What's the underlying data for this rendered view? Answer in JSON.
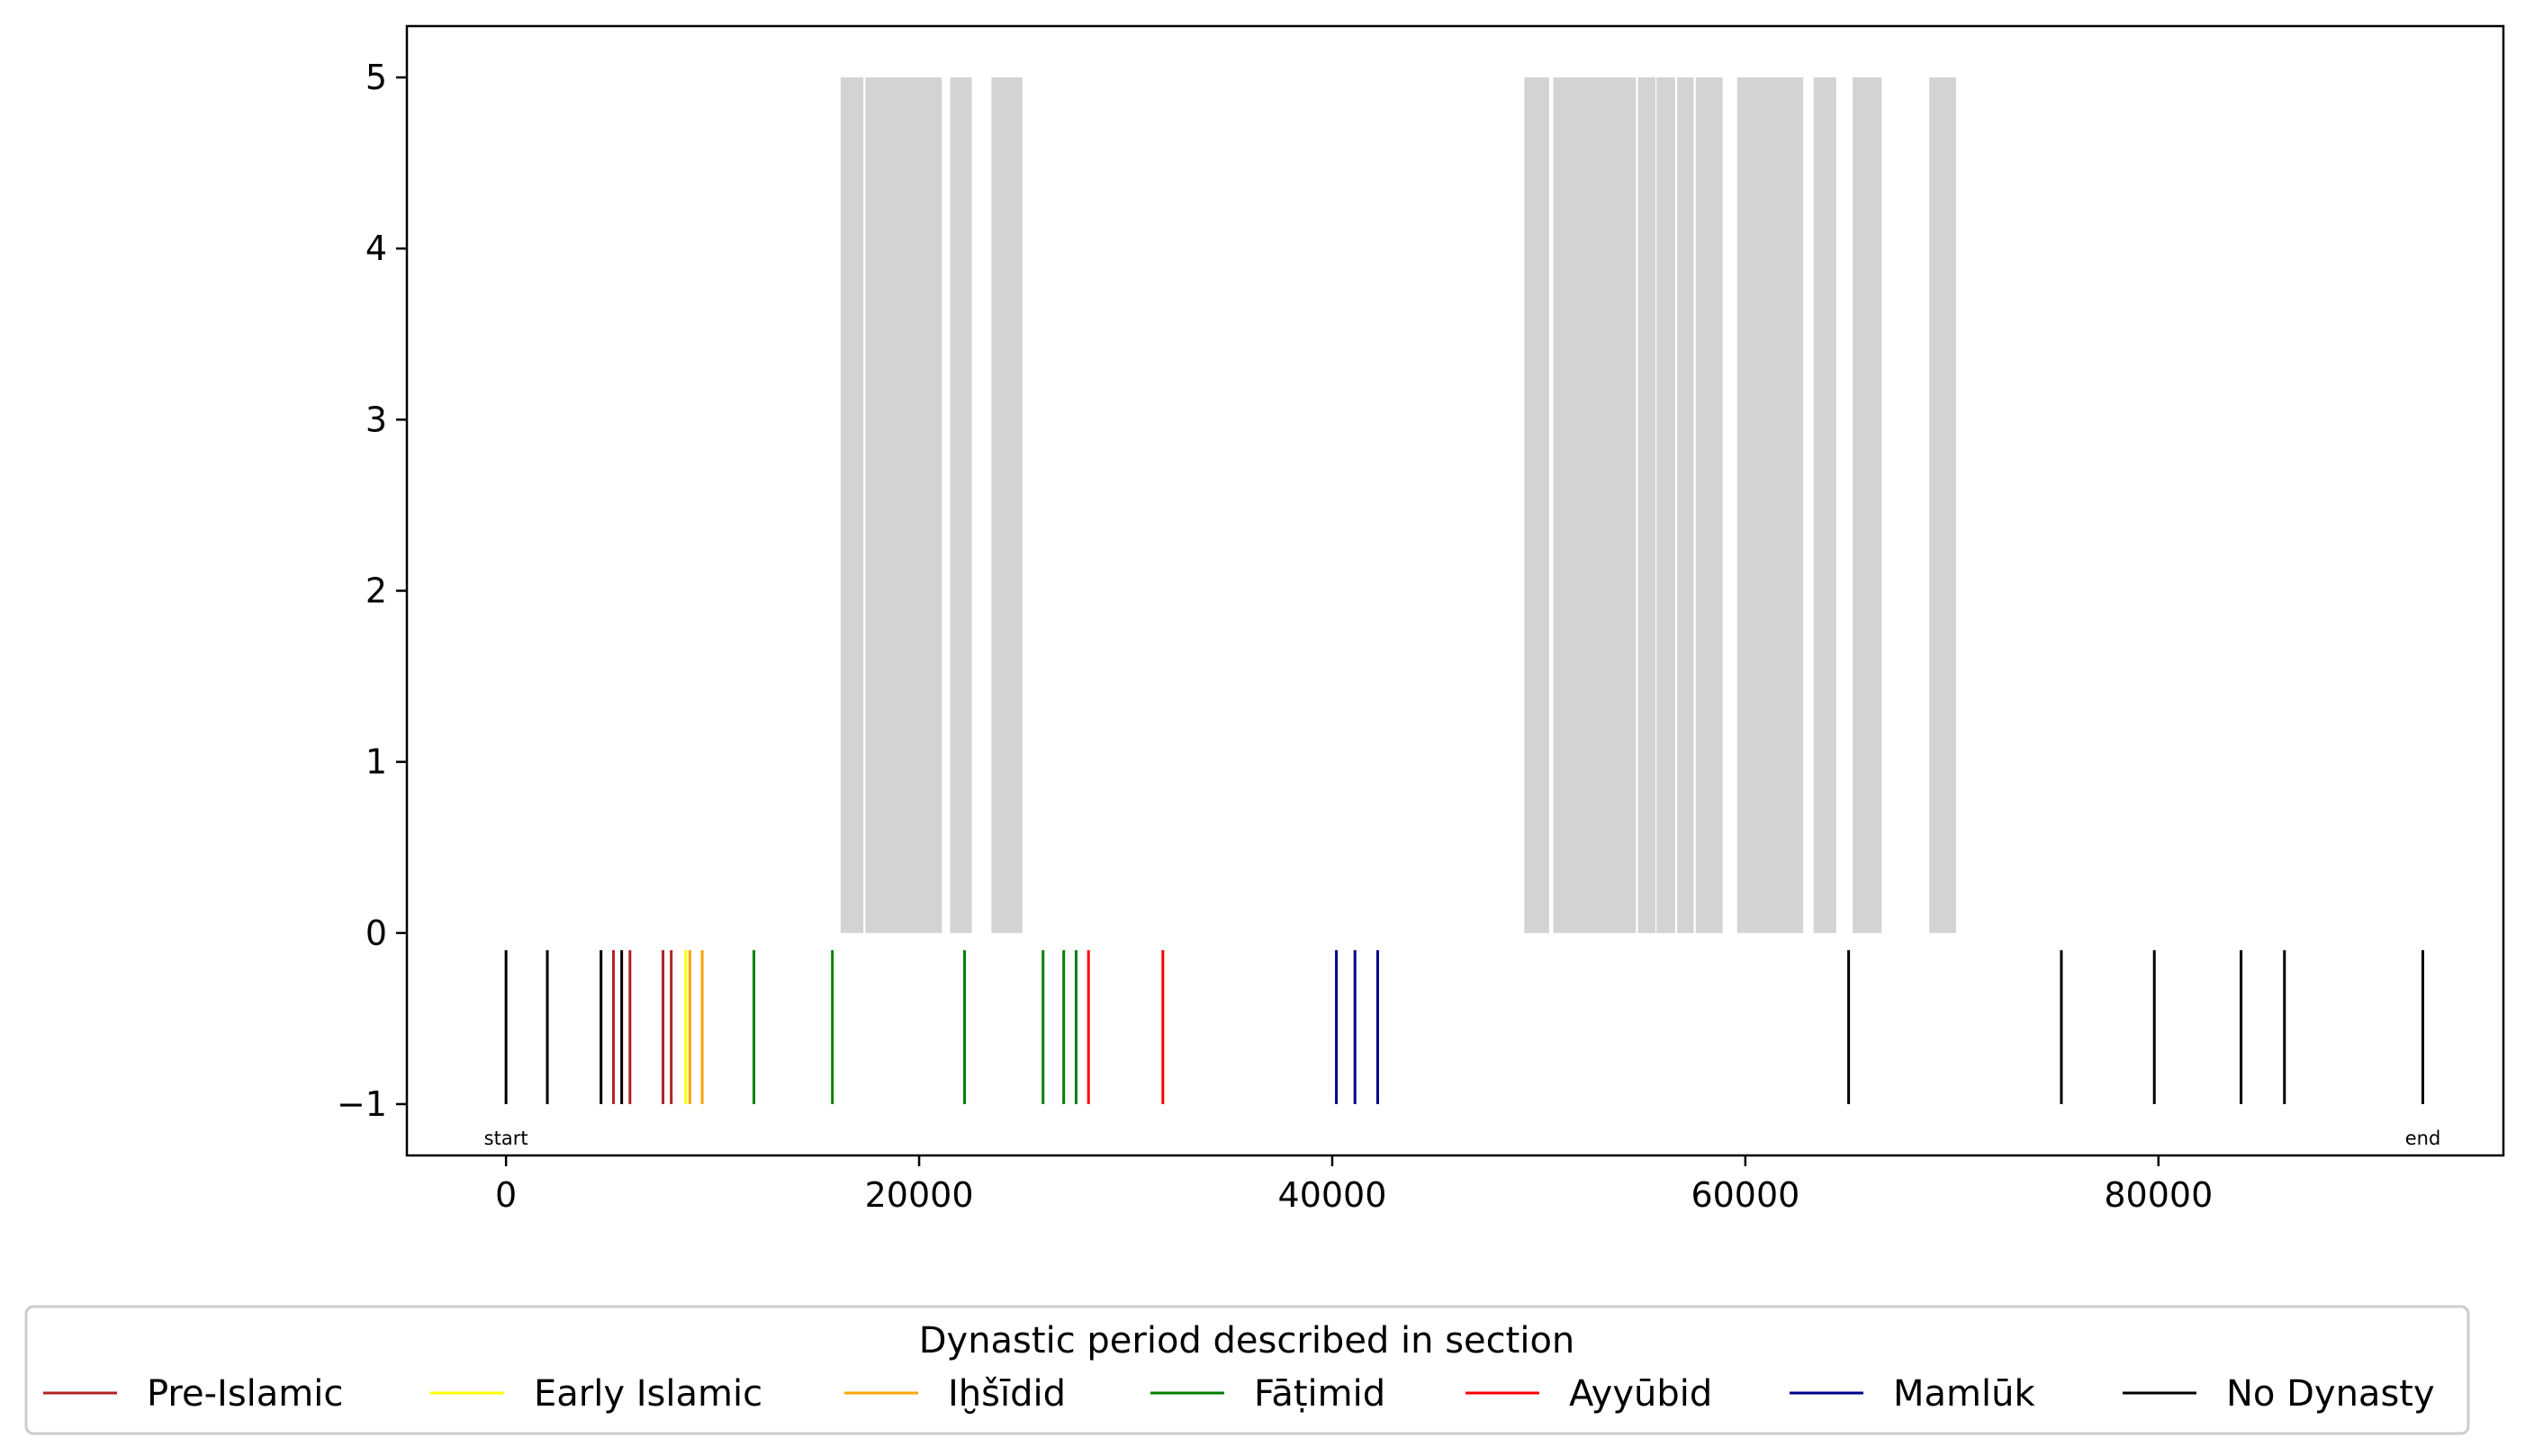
{
  "chart_data": {
    "type": "timeline",
    "xlim": [
      -4800,
      96700
    ],
    "ylim": [
      -1.3,
      5.3
    ],
    "xticks": [
      0,
      20000,
      40000,
      60000,
      80000
    ],
    "yticks": [
      5,
      4,
      3,
      2,
      1,
      0,
      -1
    ],
    "ytick_labels": [
      "5",
      "4",
      "3",
      "2",
      "1",
      "0",
      "−1"
    ],
    "grid": false,
    "shaded_regions": {
      "color": "#d3d3d3",
      "y_range": [
        0,
        5
      ],
      "x_spans": [
        [
          16200,
          17300
        ],
        [
          17400,
          21100
        ],
        [
          21500,
          22550
        ],
        [
          23500,
          25000
        ],
        [
          49300,
          50500
        ],
        [
          50700,
          54700
        ],
        [
          54800,
          55650
        ],
        [
          55700,
          56600
        ],
        [
          56700,
          57500
        ],
        [
          57600,
          58900
        ],
        [
          59600,
          62800
        ],
        [
          63300,
          64400
        ],
        [
          65200,
          66600
        ],
        [
          68900,
          70200
        ]
      ]
    },
    "events": {
      "y_range": [
        -1,
        -0.1
      ],
      "series": [
        {
          "name": "Pre-Islamic",
          "color": "#b22222",
          "x": [
            5200,
            6000,
            7600,
            8000
          ]
        },
        {
          "name": "Early Islamic",
          "color": "#ffff00",
          "x": [
            8700
          ]
        },
        {
          "name": "Iḫšīdid",
          "color": "#ffa500",
          "x": [
            8900,
            9500
          ]
        },
        {
          "name": "Fāṭimid",
          "color": "#008000",
          "x": [
            12000,
            15800,
            22200,
            26000,
            27000,
            27600
          ]
        },
        {
          "name": "Ayyūbid",
          "color": "#ff0000",
          "x": [
            28200,
            31800
          ]
        },
        {
          "name": "Mamlūk",
          "color": "#00008b",
          "x": [
            40200,
            41100,
            42200
          ]
        },
        {
          "name": "No Dynasty",
          "color": "#000000",
          "x": [
            0,
            2000,
            4600,
            5600,
            65000,
            75300,
            79800,
            84000,
            86100,
            92800
          ]
        }
      ]
    },
    "annotations": [
      {
        "text": "start",
        "x": 0
      },
      {
        "text": "end",
        "x": 92800
      }
    ],
    "legend": {
      "title": "Dynastic period described in section",
      "placement": "below plot"
    }
  }
}
